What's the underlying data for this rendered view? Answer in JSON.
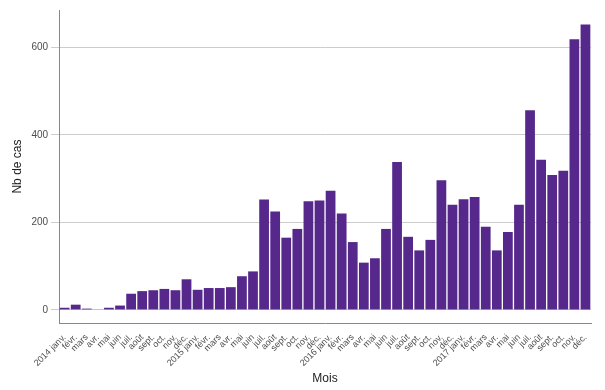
{
  "chart_data": {
    "type": "bar",
    "x_label": "Mois",
    "y_label": "Nb de cas",
    "categories": [
      "2014 janv.",
      "févr.",
      "mars",
      "avr.",
      "mai",
      "juin",
      "juil.",
      "août",
      "sept.",
      "oct.",
      "nov.",
      "déc.",
      "2015 janv.",
      "févr.",
      "mars",
      "avr.",
      "mai",
      "juin",
      "juil.",
      "août",
      "sept.",
      "oct.",
      "nov.",
      "déc.",
      "2016 janv.",
      "févr.",
      "mars",
      "avr.",
      "mai",
      "juin",
      "juil.",
      "août",
      "sept.",
      "oct.",
      "nov.",
      "déc.",
      "2017 janv.",
      "févr.",
      "mars",
      "avr.",
      "mai",
      "juin",
      "juil.",
      "août",
      "sept.",
      "oct.",
      "nov.",
      "déc."
    ],
    "values": [
      5,
      12,
      3,
      1,
      5,
      10,
      37,
      43,
      45,
      48,
      45,
      70,
      46,
      50,
      50,
      52,
      77,
      88,
      252,
      225,
      165,
      185,
      248,
      250,
      272,
      220,
      155,
      108,
      118,
      185,
      338,
      167,
      136,
      160,
      296,
      240,
      253,
      258,
      190,
      136,
      178,
      240,
      456,
      343,
      308,
      318,
      618,
      652
    ],
    "color": "#56288c",
    "ylim": [
      -30,
      685
    ],
    "yticks": [
      0,
      200,
      400,
      600
    ],
    "grid": true
  }
}
